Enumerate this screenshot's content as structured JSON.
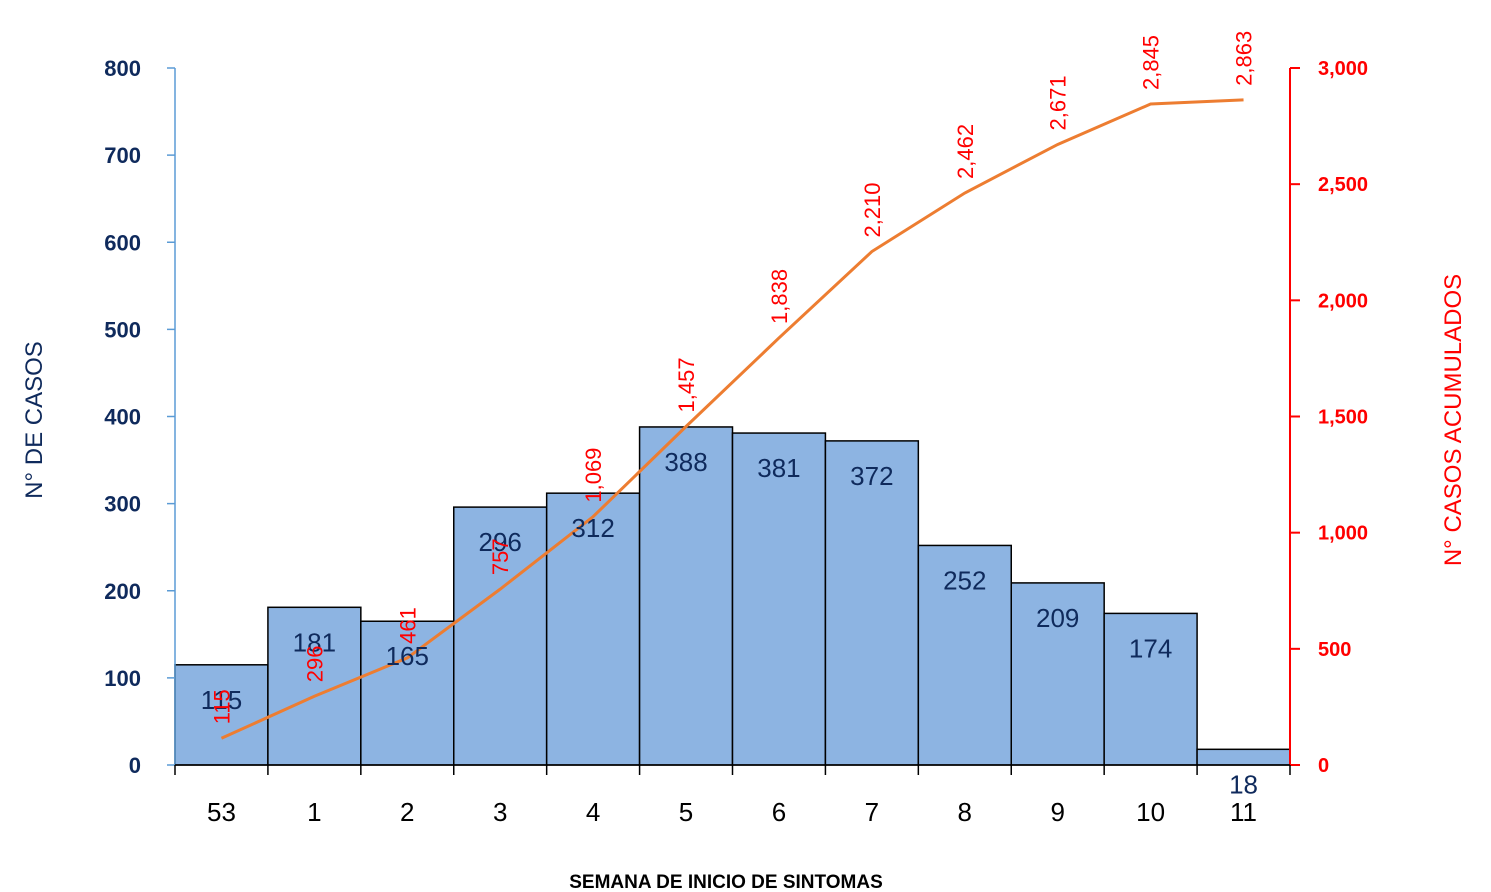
{
  "chart_data": {
    "type": "bar",
    "xlabel": "SEMANA DE INICIO DE SINTOMAS",
    "ylabel": "N° DE CASOS",
    "y2label": "N° CASOS ACUMULADOS",
    "categories": [
      "53",
      "1",
      "2",
      "3",
      "4",
      "5",
      "6",
      "7",
      "8",
      "9",
      "10",
      "11"
    ],
    "series": [
      {
        "name": "",
        "type": "bar",
        "axis": "left",
        "color": "#8db4e2",
        "values": [
          115,
          181,
          165,
          296,
          312,
          388,
          381,
          372,
          252,
          209,
          174,
          18
        ],
        "labels": [
          "115",
          "181",
          "165",
          "296",
          "312",
          "388",
          "381",
          "372",
          "252",
          "209",
          "174",
          "18"
        ]
      },
      {
        "name": "",
        "type": "line",
        "axis": "right",
        "color": "#ed7d31",
        "values": [
          115,
          296,
          461,
          757,
          1069,
          1457,
          1838,
          2210,
          2462,
          2671,
          2845,
          2863
        ],
        "labels": [
          "115",
          "296",
          "461",
          "757",
          "1,069",
          "1,457",
          "1,838",
          "2,210",
          "2,462",
          "2,671",
          "2,845",
          "2,863"
        ]
      }
    ],
    "ylim": [
      0,
      800
    ],
    "yticks": [
      0,
      100,
      200,
      300,
      400,
      500,
      600,
      700,
      800
    ],
    "y2lim": [
      0,
      3000
    ],
    "y2ticks": [
      "0",
      "500",
      "1,000",
      "1,500",
      "2,000",
      "2,500",
      "3,000"
    ],
    "left_axis_color": "#0f2a5c",
    "right_axis_color": "#ff0000",
    "grid": false,
    "legend": "none"
  }
}
